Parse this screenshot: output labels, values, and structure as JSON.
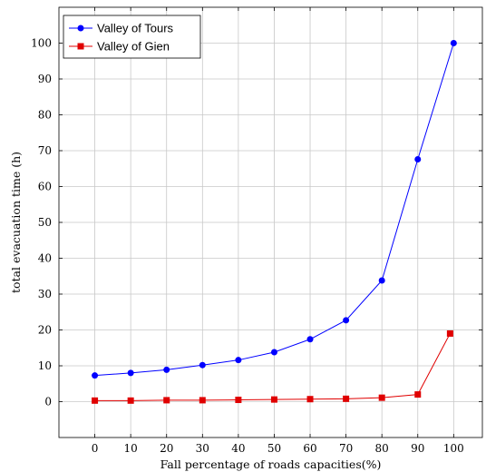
{
  "chart_data": {
    "type": "line",
    "title": "",
    "xlabel": "Fall percentage of roads capacities(%)",
    "ylabel": "total evacuation time (h)",
    "xlim": [
      -10,
      108
    ],
    "ylim": [
      -10,
      110
    ],
    "x_ticks": [
      0,
      10,
      20,
      30,
      40,
      50,
      60,
      70,
      80,
      90,
      100
    ],
    "y_ticks": [
      0,
      10,
      20,
      30,
      40,
      50,
      60,
      70,
      80,
      90,
      100
    ],
    "x": [
      0,
      10,
      20,
      30,
      40,
      50,
      60,
      70,
      80,
      90,
      100
    ],
    "grid": true,
    "legend_position": "top-left",
    "series": [
      {
        "name": "Valley of Tours",
        "color": "#0000ff",
        "marker": "circle",
        "x": [
          0,
          10,
          20,
          30,
          40,
          50,
          60,
          70,
          80,
          90,
          100
        ],
        "values": [
          7.3,
          8.0,
          8.9,
          10.2,
          11.6,
          13.8,
          17.4,
          22.7,
          33.8,
          67.6,
          100.0
        ]
      },
      {
        "name": "Valley of Gien",
        "color": "#e00000",
        "marker": "square",
        "x": [
          0,
          10,
          20,
          30,
          40,
          50,
          60,
          70,
          80,
          90,
          99
        ],
        "values": [
          0.3,
          0.3,
          0.4,
          0.4,
          0.5,
          0.6,
          0.7,
          0.8,
          1.1,
          2.0,
          19.0
        ]
      }
    ]
  }
}
